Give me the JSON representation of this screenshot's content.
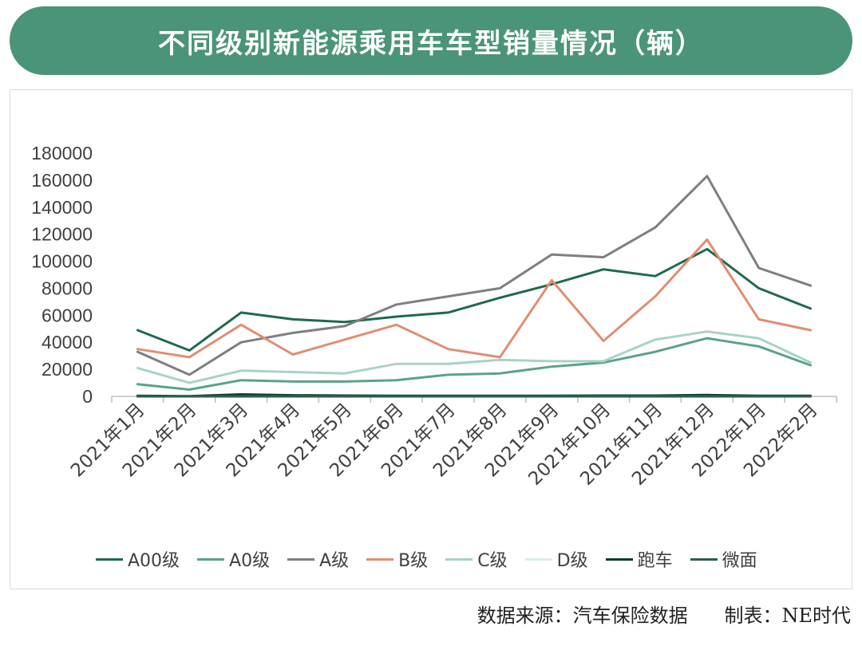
{
  "header": {
    "title": "不同级别新能源乘用车车型销量情况（辆）"
  },
  "footer": {
    "source": "数据来源：汽车保险数据",
    "credit": "制表：NE时代"
  },
  "chart_data": {
    "type": "line",
    "title": "不同级别新能源乘用车车型销量情况（辆）",
    "xlabel": "",
    "ylabel": "",
    "ylim": [
      0,
      180000
    ],
    "yticks": [
      "0",
      "20000",
      "40000",
      "60000",
      "80000",
      "100000",
      "120000",
      "140000",
      "160000",
      "180000"
    ],
    "grid": false,
    "legend_position": "bottom",
    "categories": [
      "2021年1月",
      "2021年2月",
      "2021年3月",
      "2021年4月",
      "2021年5月",
      "2021年6月",
      "2021年7月",
      "2021年8月",
      "2021年9月",
      "2021年10月",
      "2021年11月",
      "2021年12月",
      "2022年1月",
      "2022年2月"
    ],
    "series": [
      {
        "name": "A00级",
        "color": "#1e6b4c",
        "values": [
          49000,
          34000,
          62000,
          57000,
          55000,
          59000,
          62000,
          73000,
          83000,
          94000,
          89000,
          109000,
          80000,
          65000
        ]
      },
      {
        "name": "A0级",
        "color": "#58a487",
        "values": [
          9000,
          5000,
          12000,
          11000,
          11000,
          12000,
          16000,
          17000,
          22000,
          25000,
          33000,
          43000,
          37000,
          23000
        ]
      },
      {
        "name": "A级",
        "color": "#7f7f7f",
        "values": [
          33000,
          16000,
          40000,
          47000,
          52000,
          68000,
          74000,
          80000,
          105000,
          103000,
          125000,
          163000,
          95000,
          82000
        ]
      },
      {
        "name": "B级",
        "color": "#e08e72",
        "values": [
          35000,
          29000,
          53000,
          31000,
          42000,
          53000,
          35000,
          29000,
          86000,
          41000,
          74000,
          116000,
          57000,
          49000
        ]
      },
      {
        "name": "C级",
        "color": "#a9d3c2",
        "values": [
          21000,
          10000,
          19000,
          18000,
          17000,
          24000,
          24000,
          27000,
          26000,
          26000,
          42000,
          48000,
          43000,
          25000
        ]
      },
      {
        "name": "D级",
        "color": "#dbeee6",
        "values": [
          200,
          100,
          300,
          300,
          300,
          300,
          400,
          400,
          400,
          500,
          500,
          600,
          400,
          300
        ]
      },
      {
        "name": "跑车",
        "color": "#0f3d2b",
        "values": [
          500,
          200,
          1500,
          800,
          600,
          400,
          400,
          400,
          500,
          600,
          600,
          1000,
          500,
          400
        ]
      },
      {
        "name": "微面",
        "color": "#2f5e4e",
        "values": [
          0,
          0,
          0,
          0,
          0,
          0,
          0,
          0,
          0,
          0,
          0,
          0,
          0,
          0
        ]
      }
    ]
  }
}
